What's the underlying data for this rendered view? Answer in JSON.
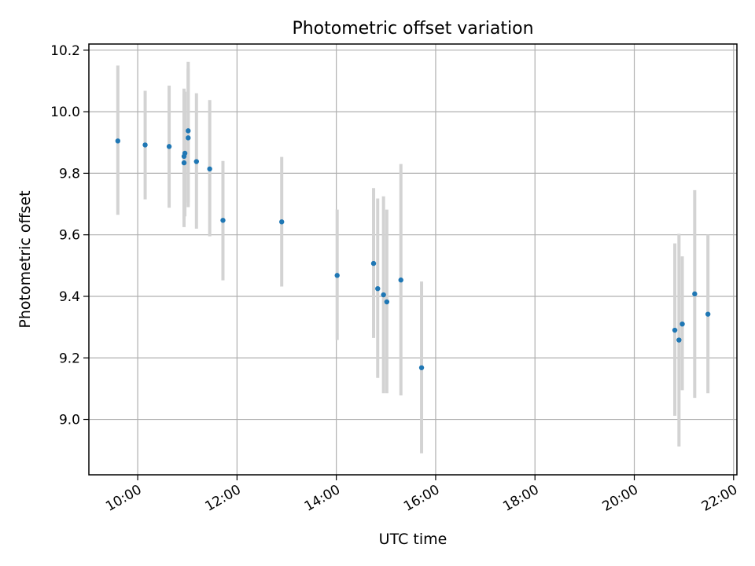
{
  "chart_data": {
    "type": "scatter",
    "title": "Photometric offset variation",
    "xlabel": "UTC time",
    "ylabel": "Photometric offset",
    "xlim": [
      "09:01",
      "22:04"
    ],
    "ylim": [
      8.82,
      10.22
    ],
    "x_ticks": [
      "10:00",
      "12:00",
      "14:00",
      "16:00",
      "18:00",
      "20:00",
      "22:00"
    ],
    "y_ticks": [
      "9.0",
      "9.2",
      "9.4",
      "9.6",
      "9.8",
      "10.0",
      "10.2"
    ],
    "grid": true,
    "colors": {
      "point": "#1f77b4",
      "errorbar": "#d3d3d3",
      "grid": "#b0b0b0"
    },
    "points": [
      {
        "x": "09:36",
        "y": 9.905,
        "ylow": 9.665,
        "yhigh": 10.15
      },
      {
        "x": "10:09",
        "y": 9.892,
        "ylow": 9.715,
        "yhigh": 10.068
      },
      {
        "x": "10:38",
        "y": 9.887,
        "ylow": 9.688,
        "yhigh": 10.085
      },
      {
        "x": "10:56",
        "y": 9.834,
        "ylow": 9.625,
        "yhigh": 10.075
      },
      {
        "x": "10:56",
        "y": 9.855,
        "ylow": 9.65,
        "yhigh": 10.06
      },
      {
        "x": "10:57",
        "y": 9.865,
        "ylow": 9.66,
        "yhigh": 10.065
      },
      {
        "x": "11:01",
        "y": 9.915,
        "ylow": 9.69,
        "yhigh": 10.14
      },
      {
        "x": "11:01",
        "y": 9.938,
        "ylow": 9.705,
        "yhigh": 10.162
      },
      {
        "x": "11:11",
        "y": 9.838,
        "ylow": 9.62,
        "yhigh": 10.06
      },
      {
        "x": "11:27",
        "y": 9.814,
        "ylow": 9.595,
        "yhigh": 10.038
      },
      {
        "x": "11:43",
        "y": 9.647,
        "ylow": 9.452,
        "yhigh": 9.84
      },
      {
        "x": "12:54",
        "y": 9.642,
        "ylow": 9.432,
        "yhigh": 9.853
      },
      {
        "x": "14:01",
        "y": 9.468,
        "ylow": 9.258,
        "yhigh": 9.682
      },
      {
        "x": "14:45",
        "y": 9.507,
        "ylow": 9.265,
        "yhigh": 9.752
      },
      {
        "x": "14:50",
        "y": 9.425,
        "ylow": 9.135,
        "yhigh": 9.718
      },
      {
        "x": "14:57",
        "y": 9.405,
        "ylow": 9.085,
        "yhigh": 9.725
      },
      {
        "x": "15:01",
        "y": 9.382,
        "ylow": 9.085,
        "yhigh": 9.682
      },
      {
        "x": "15:18",
        "y": 9.453,
        "ylow": 9.078,
        "yhigh": 9.83
      },
      {
        "x": "15:43",
        "y": 9.168,
        "ylow": 8.89,
        "yhigh": 9.448
      },
      {
        "x": "20:49",
        "y": 9.29,
        "ylow": 9.012,
        "yhigh": 9.572
      },
      {
        "x": "20:54",
        "y": 9.258,
        "ylow": 8.912,
        "yhigh": 9.603
      },
      {
        "x": "20:58",
        "y": 9.31,
        "ylow": 9.095,
        "yhigh": 9.53
      },
      {
        "x": "21:13",
        "y": 9.408,
        "ylow": 9.07,
        "yhigh": 9.745
      },
      {
        "x": "21:29",
        "y": 9.342,
        "ylow": 9.085,
        "yhigh": 9.6
      }
    ]
  }
}
